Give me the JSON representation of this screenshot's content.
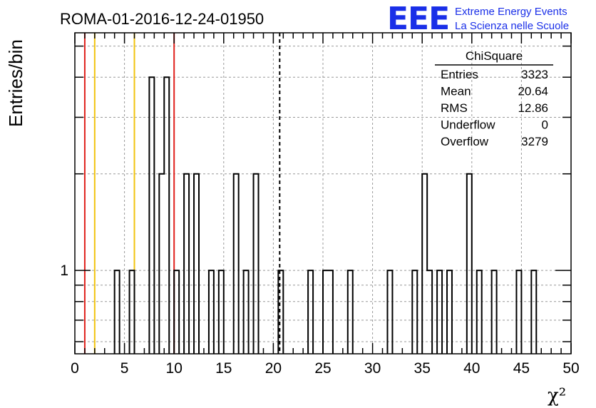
{
  "chart_data": {
    "type": "bar",
    "title": "ROMA-01-2016-12-24-01950",
    "xlabel": "χ²",
    "ylabel": "Entries/bin",
    "xlim": [
      0,
      50
    ],
    "ylog": true,
    "ylim": [
      0.55,
      5.5
    ],
    "x_ticks": [
      0,
      5,
      10,
      15,
      20,
      25,
      30,
      35,
      40,
      45,
      50
    ],
    "y_tick_labels": [
      {
        "value": 1,
        "label": "1"
      }
    ],
    "grid": true,
    "bin_width": 0.5,
    "bins": [
      {
        "x": 4.0,
        "count": 1
      },
      {
        "x": 5.5,
        "count": 1
      },
      {
        "x": 7.5,
        "count": 4
      },
      {
        "x": 8.5,
        "count": 2
      },
      {
        "x": 9.0,
        "count": 4
      },
      {
        "x": 10.0,
        "count": 1
      },
      {
        "x": 11.0,
        "count": 2
      },
      {
        "x": 12.0,
        "count": 2
      },
      {
        "x": 13.5,
        "count": 1
      },
      {
        "x": 14.5,
        "count": 1
      },
      {
        "x": 16.0,
        "count": 2
      },
      {
        "x": 17.0,
        "count": 1
      },
      {
        "x": 18.0,
        "count": 2
      },
      {
        "x": 20.5,
        "count": 1
      },
      {
        "x": 23.5,
        "count": 1
      },
      {
        "x": 25.0,
        "count": 1
      },
      {
        "x": 25.5,
        "count": 1
      },
      {
        "x": 27.5,
        "count": 1
      },
      {
        "x": 31.5,
        "count": 1
      },
      {
        "x": 34.0,
        "count": 1
      },
      {
        "x": 35.0,
        "count": 2
      },
      {
        "x": 35.5,
        "count": 1
      },
      {
        "x": 36.5,
        "count": 1
      },
      {
        "x": 37.5,
        "count": 1
      },
      {
        "x": 39.5,
        "count": 2
      },
      {
        "x": 40.5,
        "count": 1
      },
      {
        "x": 42.0,
        "count": 1
      },
      {
        "x": 44.5,
        "count": 1
      },
      {
        "x": 46.0,
        "count": 1
      }
    ],
    "reference_lines": [
      {
        "x": 1.0,
        "color": "#e0201c",
        "style": "solid"
      },
      {
        "x": 2.0,
        "color": "#f2c40f",
        "style": "solid"
      },
      {
        "x": 6.0,
        "color": "#f2c40f",
        "style": "solid"
      },
      {
        "x": 10.0,
        "color": "#e0201c",
        "style": "solid"
      },
      {
        "x": 20.64,
        "color": "#000000",
        "style": "dashed"
      }
    ],
    "stats_box": {
      "title": "ChiSquare",
      "rows": [
        {
          "label": "Entries",
          "value": "3323"
        },
        {
          "label": "Mean",
          "value": "20.64"
        },
        {
          "label": "RMS",
          "value": "12.86"
        },
        {
          "label": "Underflow",
          "value": "0"
        },
        {
          "label": "Overflow",
          "value": "3279"
        }
      ]
    }
  },
  "logo": {
    "mark": "EEE",
    "line1": "Extreme Energy Events",
    "line2": "La Scienza nelle Scuole",
    "color": "#1a2fe8"
  }
}
